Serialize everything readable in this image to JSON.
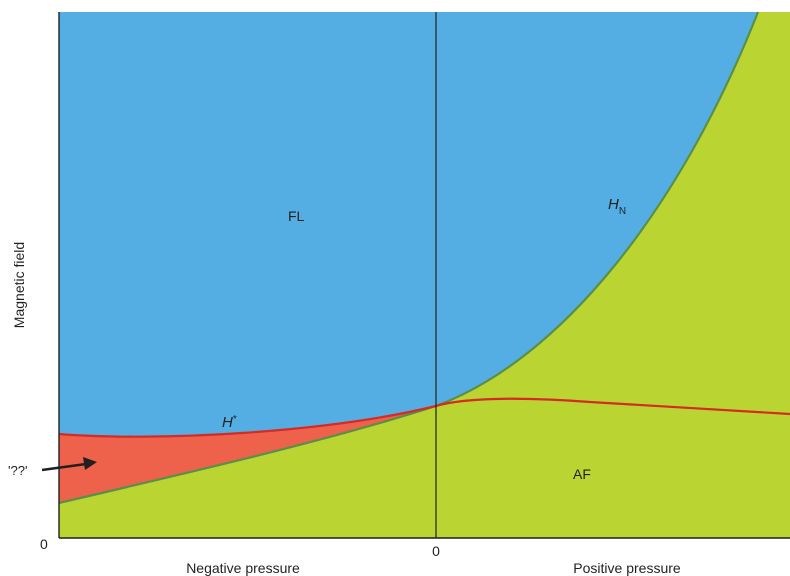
{
  "regions": {
    "fl": "FL",
    "af": "AF",
    "unknown": "'??'"
  },
  "lines": {
    "h_star": {
      "base": "H",
      "sup": "*"
    },
    "h_n": {
      "base": "H",
      "sub": "N"
    }
  },
  "axes": {
    "y_label": "Magnetic field",
    "y_origin": "0",
    "x_center": "0",
    "x_left_label": "Negative pressure",
    "x_right_label": "Positive pressure"
  },
  "colors": {
    "fl": "#55aee3",
    "af": "#bad532",
    "unknown": "#ee614b",
    "h_star_line": "#d42b25",
    "h_n_line": "#5a8f4a",
    "axis": "#231f20"
  }
}
